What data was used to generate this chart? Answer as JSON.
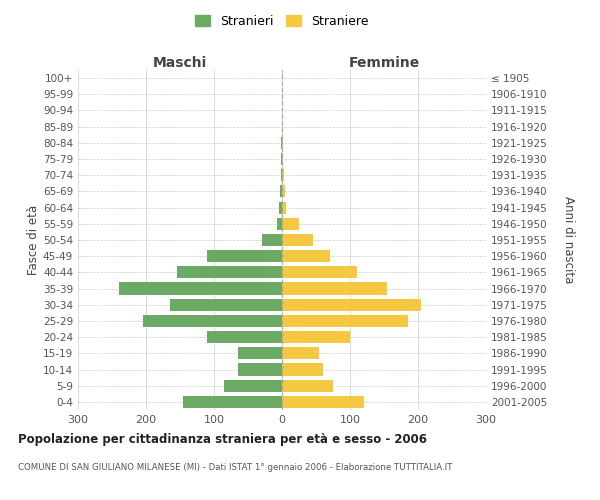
{
  "age_groups": [
    "0-4",
    "5-9",
    "10-14",
    "15-19",
    "20-24",
    "25-29",
    "30-34",
    "35-39",
    "40-44",
    "45-49",
    "50-54",
    "55-59",
    "60-64",
    "65-69",
    "70-74",
    "75-79",
    "80-84",
    "85-89",
    "90-94",
    "95-99",
    "100+"
  ],
  "birth_years": [
    "2001-2005",
    "1996-2000",
    "1991-1995",
    "1986-1990",
    "1981-1985",
    "1976-1980",
    "1971-1975",
    "1966-1970",
    "1961-1965",
    "1956-1960",
    "1951-1955",
    "1946-1950",
    "1941-1945",
    "1936-1940",
    "1931-1935",
    "1926-1930",
    "1921-1925",
    "1916-1920",
    "1911-1915",
    "1906-1910",
    "≤ 1905"
  ],
  "males": [
    145,
    85,
    65,
    65,
    110,
    205,
    165,
    240,
    155,
    110,
    30,
    8,
    4,
    3,
    2,
    1,
    1,
    0,
    0,
    0,
    0
  ],
  "females": [
    120,
    75,
    60,
    55,
    100,
    185,
    205,
    155,
    110,
    70,
    45,
    25,
    6,
    4,
    3,
    2,
    2,
    1,
    0,
    0,
    0
  ],
  "male_color": "#6aaa64",
  "female_color": "#f5c842",
  "background_color": "#ffffff",
  "grid_color": "#cccccc",
  "title": "Popolazione per cittadinanza straniera per età e sesso - 2006",
  "subtitle": "COMUNE DI SAN GIULIANO MILANESE (MI) - Dati ISTAT 1° gennaio 2006 - Elaborazione TUTTITALIA.IT",
  "ylabel_left": "Fasce di età",
  "ylabel_right": "Anni di nascita",
  "xlabel_left": "Maschi",
  "xlabel_right": "Femmine",
  "legend_male": "Stranieri",
  "legend_female": "Straniere",
  "xlim": 300,
  "bar_height": 0.75
}
